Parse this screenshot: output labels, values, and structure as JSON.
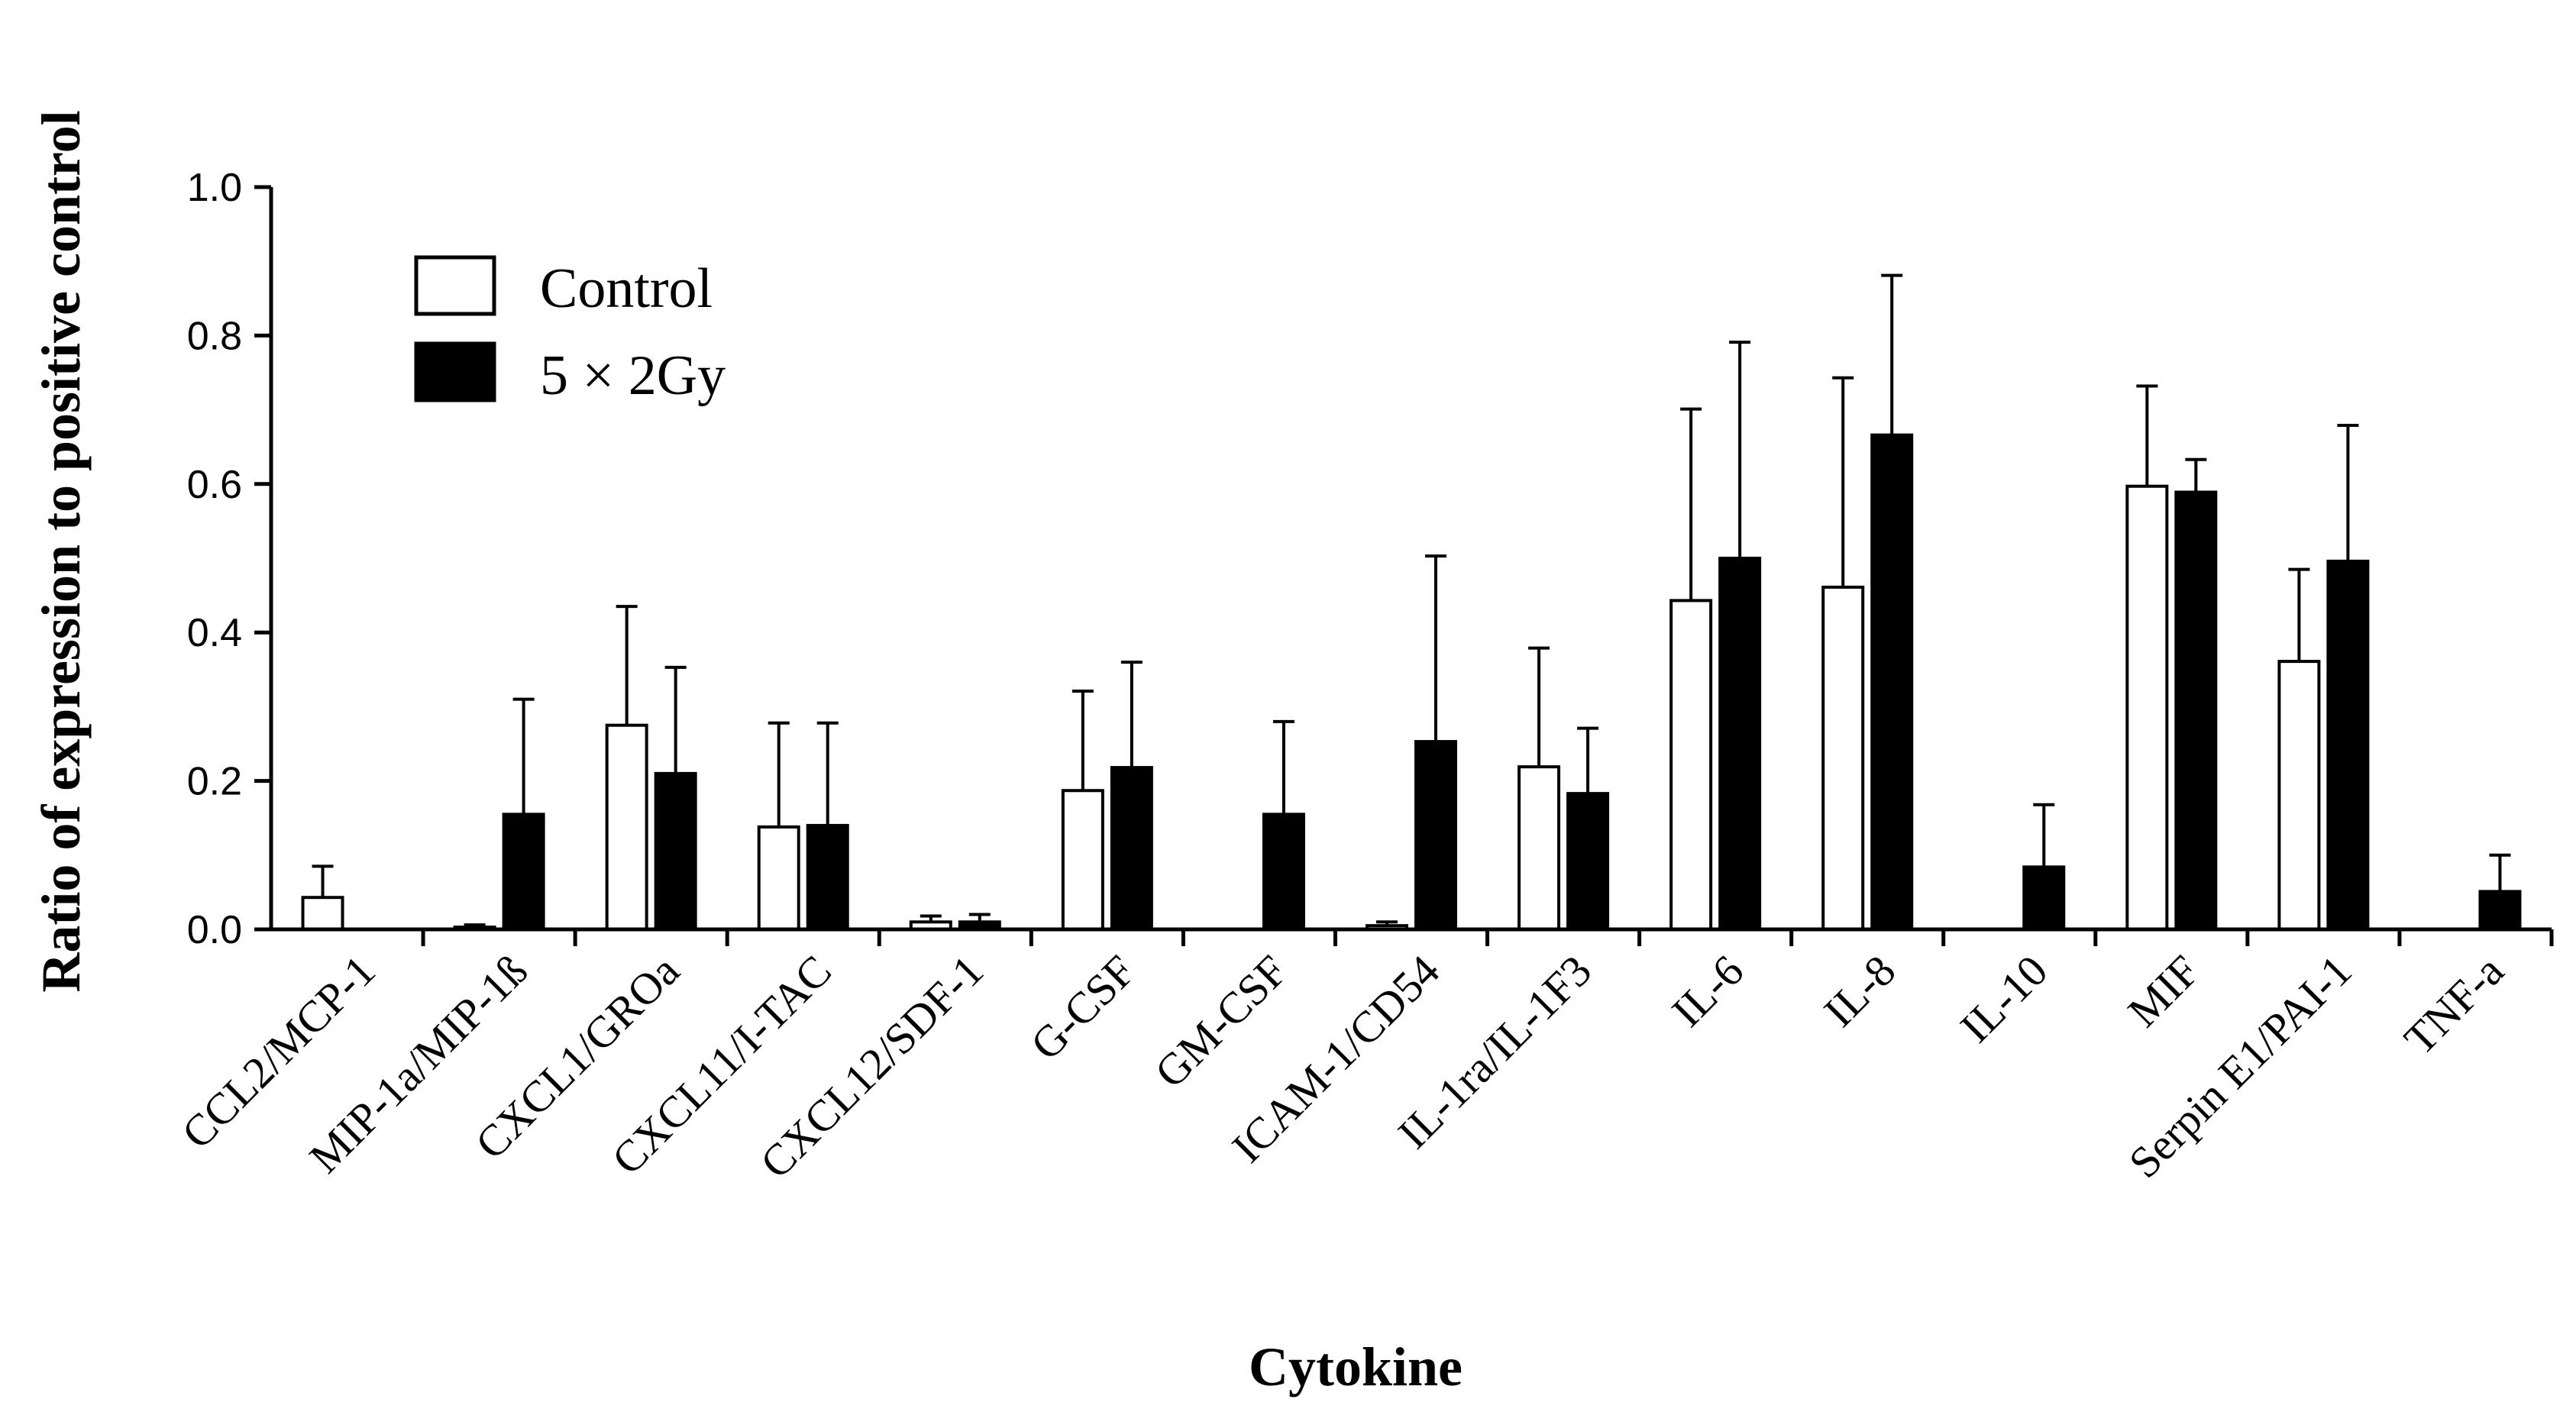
{
  "chart_data": {
    "type": "bar",
    "title": "",
    "xlabel": "Cytokine",
    "ylabel": "Ratio of expression to positive control",
    "ylim": [
      0,
      1.0
    ],
    "yticks": [
      "0.0",
      "0.2",
      "0.4",
      "0.6",
      "0.8",
      "1.0"
    ],
    "grid": false,
    "legend_position": "top-left",
    "error_bars": "one-sided (upper)",
    "categories": [
      "CCL2/MCP-1",
      "MIP-1a/MIP-1ß",
      "CXCL1/GROa",
      "CXCL11/I-TAC",
      "CXCL12/SDF-1",
      "G-CSF",
      "GM-CSF",
      "ICAM-1/CD54",
      "IL-1ra/IL-1F3",
      "IL-6",
      "IL-8",
      "IL-10",
      "MIF",
      "Serpin E1/PAI-1",
      "TNF-a"
    ],
    "series": [
      {
        "name": "Control",
        "fill": "#ffffff",
        "stroke": "#000000",
        "values": [
          0.043,
          0.003,
          0.275,
          0.138,
          0.01,
          0.187,
          0,
          0.005,
          0.219,
          0.443,
          0.461,
          0,
          0.597,
          0.361,
          0
        ],
        "errors": [
          0.042,
          0.003,
          0.16,
          0.14,
          0.008,
          0.134,
          0,
          0.005,
          0.16,
          0.258,
          0.282,
          0,
          0.135,
          0.124,
          0
        ]
      },
      {
        "name": "5 × 2Gy",
        "fill": "#000000",
        "stroke": "#000000",
        "values": [
          0,
          0.155,
          0.21,
          0.14,
          0.01,
          0.218,
          0.155,
          0.253,
          0.183,
          0.5,
          0.666,
          0.084,
          0.589,
          0.496,
          0.051
        ],
        "errors": [
          0,
          0.155,
          0.143,
          0.138,
          0.01,
          0.142,
          0.125,
          0.25,
          0.088,
          0.291,
          0.215,
          0.084,
          0.044,
          0.183,
          0.049
        ]
      }
    ]
  }
}
